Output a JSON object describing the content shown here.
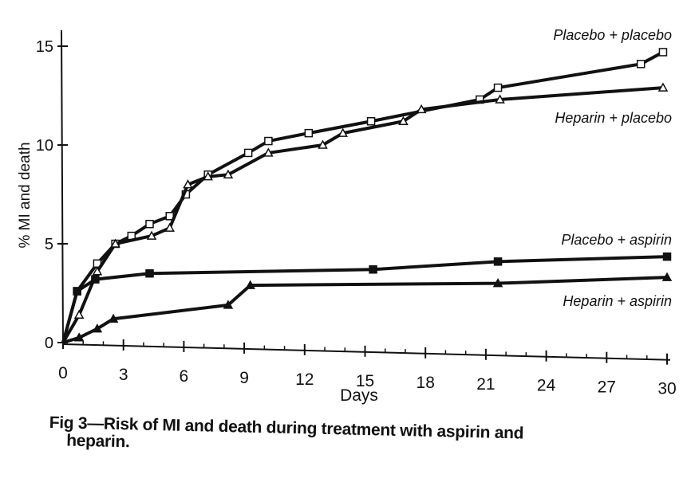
{
  "chart_data": {
    "type": "line",
    "xlabel": "Days",
    "ylabel": "% MI and death",
    "xlim": [
      0,
      30
    ],
    "ylim": [
      0,
      15
    ],
    "xticks": [
      "0",
      "3",
      "6",
      "9",
      "12",
      "15",
      "18",
      "21",
      "24",
      "27",
      "30"
    ],
    "yticks": [
      "0",
      "5",
      "10",
      "15"
    ],
    "grid": false,
    "caption": {
      "line1": "Fig 3—Risk of MI and death during treatment with aspirin and",
      "line2": "heparin."
    },
    "series": [
      {
        "name": "Placebo + placebo",
        "marker": "square-open",
        "x": [
          0,
          0.7,
          1.7,
          2.6,
          3.4,
          4.3,
          5.3,
          6.1,
          7.2,
          9.2,
          10.2,
          12.2,
          15.3,
          20.7,
          21.6,
          28.7,
          29.8
        ],
        "y": [
          0,
          2.6,
          4.0,
          5.0,
          5.4,
          6.0,
          6.4,
          7.5,
          8.5,
          9.6,
          10.2,
          10.6,
          11.2,
          12.3,
          12.9,
          14.1,
          14.7
        ]
      },
      {
        "name": "Heparin + placebo",
        "marker": "triangle-open",
        "x": [
          0,
          0.8,
          1.7,
          2.6,
          4.4,
          5.3,
          6.2,
          7.2,
          8.2,
          10.2,
          12.9,
          13.9,
          16.9,
          17.8,
          21.7,
          29.8
        ],
        "y": [
          0,
          1.4,
          3.6,
          5.0,
          5.4,
          5.8,
          8.0,
          8.4,
          8.5,
          9.6,
          10.0,
          10.6,
          11.2,
          11.8,
          12.3,
          12.9
        ]
      },
      {
        "name": "Placebo + aspirin",
        "marker": "square-filled",
        "x": [
          0,
          0.7,
          1.6,
          4.3,
          15.4,
          21.6,
          30
        ],
        "y": [
          0,
          2.6,
          3.2,
          3.5,
          3.7,
          4.1,
          4.35
        ]
      },
      {
        "name": "Heparin + aspirin",
        "marker": "triangle-filled",
        "x": [
          0,
          0.8,
          1.7,
          2.5,
          8.2,
          9.3,
          21.6,
          30
        ],
        "y": [
          0,
          0.25,
          0.7,
          1.2,
          1.9,
          2.9,
          3.0,
          3.3
        ]
      }
    ]
  }
}
